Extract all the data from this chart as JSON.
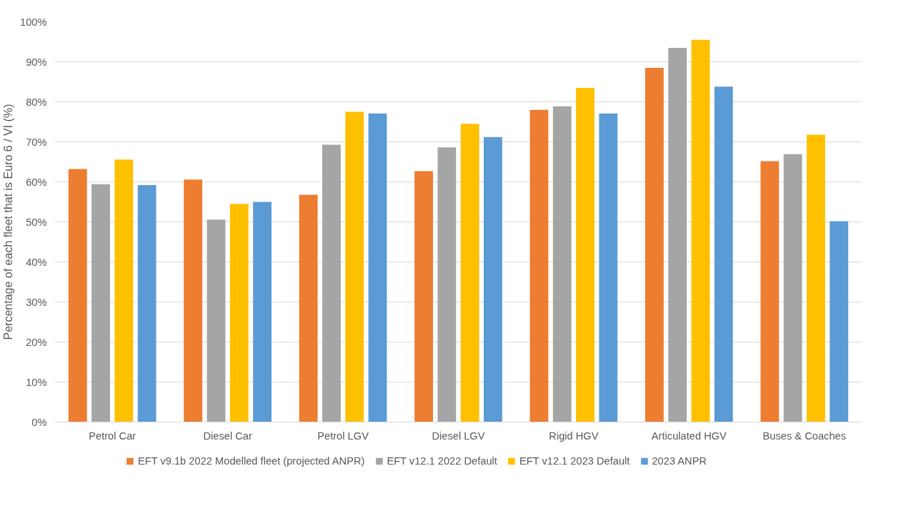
{
  "chart_data": {
    "type": "bar",
    "categories": [
      "Petrol Car",
      "Diesel Car",
      "Petrol LGV",
      "Diesel LGV",
      "Rigid HGV",
      "Articulated HGV",
      "Buses & Coaches"
    ],
    "ylabel": "Percentage of each fleet that is Euro 6 / VI (%)",
    "series": [
      {
        "name": "EFT v9.1b 2022 Modelled fleet (projected ANPR)",
        "color": "#ed7d31",
        "values": [
          63.2,
          60.6,
          56.8,
          62.7,
          78.0,
          88.5,
          65.2
        ]
      },
      {
        "name": "EFT v12.1 2022 Default",
        "color": "#a5a5a5",
        "values": [
          59.4,
          50.6,
          69.3,
          68.6,
          78.9,
          93.5,
          66.9
        ]
      },
      {
        "name": "EFT v12.1 2023 Default",
        "color": "#ffc000",
        "values": [
          65.6,
          54.5,
          77.5,
          74.5,
          83.5,
          95.5,
          71.8
        ]
      },
      {
        "name": "2023 ANPR",
        "color": "#5b9bd5",
        "values": [
          59.2,
          55.0,
          77.1,
          71.2,
          77.1,
          83.8,
          50.2
        ]
      }
    ],
    "ylim": [
      0,
      100
    ],
    "yticks": [
      {
        "value": 0,
        "label": "0%"
      },
      {
        "value": 10,
        "label": "10%"
      },
      {
        "value": 20,
        "label": "20%"
      },
      {
        "value": 30,
        "label": "30%"
      },
      {
        "value": 40,
        "label": "40%"
      },
      {
        "value": 50,
        "label": "50%"
      },
      {
        "value": 60,
        "label": "60%"
      },
      {
        "value": 70,
        "label": "70%"
      },
      {
        "value": 80,
        "label": "80%"
      },
      {
        "value": 90,
        "label": "90%"
      },
      {
        "value": 100,
        "label": "100%"
      }
    ],
    "grid": "y",
    "legend": "bottom"
  }
}
